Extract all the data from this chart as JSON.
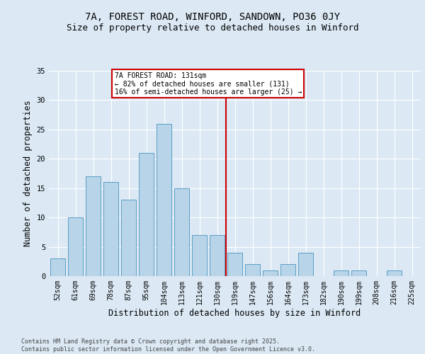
{
  "title_line1": "7A, FOREST ROAD, WINFORD, SANDOWN, PO36 0JY",
  "title_line2": "Size of property relative to detached houses in Winford",
  "xlabel": "Distribution of detached houses by size in Winford",
  "ylabel": "Number of detached properties",
  "categories": [
    "52sqm",
    "61sqm",
    "69sqm",
    "78sqm",
    "87sqm",
    "95sqm",
    "104sqm",
    "113sqm",
    "121sqm",
    "130sqm",
    "139sqm",
    "147sqm",
    "156sqm",
    "164sqm",
    "173sqm",
    "182sqm",
    "190sqm",
    "199sqm",
    "208sqm",
    "216sqm",
    "225sqm"
  ],
  "values": [
    3,
    10,
    17,
    16,
    13,
    21,
    26,
    15,
    7,
    7,
    4,
    2,
    1,
    2,
    4,
    0,
    1,
    1,
    0,
    1,
    0
  ],
  "bar_color": "#b8d4e8",
  "bar_edge_color": "#5a9fc5",
  "vline_color": "#cc0000",
  "annotation_text": "7A FOREST ROAD: 131sqm\n← 82% of detached houses are smaller (131)\n16% of semi-detached houses are larger (25) →",
  "annotation_box_color": "#cc0000",
  "ylim": [
    0,
    35
  ],
  "yticks": [
    0,
    5,
    10,
    15,
    20,
    25,
    30,
    35
  ],
  "bg_color": "#dce9f5",
  "plot_bg_color": "#dce9f5",
  "footer_text": "Contains HM Land Registry data © Crown copyright and database right 2025.\nContains public sector information licensed under the Open Government Licence v3.0.",
  "grid_color": "#ffffff",
  "title_fontsize": 10,
  "subtitle_fontsize": 9,
  "tick_fontsize": 7,
  "xlabel_fontsize": 8.5,
  "ylabel_fontsize": 8.5,
  "annotation_fontsize": 7,
  "footer_fontsize": 6
}
